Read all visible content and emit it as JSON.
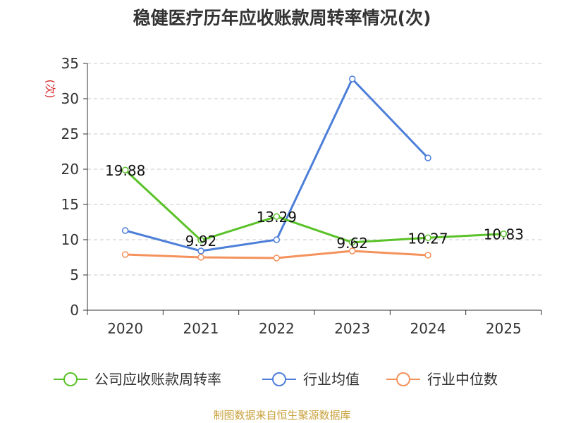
{
  "chart_data": {
    "type": "line",
    "title": "稳健医疗历年应收账款周转率情况(次)",
    "ylabel": "(次)",
    "xlabel": "",
    "categories": [
      "2020",
      "2021",
      "2022",
      "2023",
      "2024",
      "2025"
    ],
    "ylim": [
      0,
      35
    ],
    "yticks": [
      0,
      5,
      10,
      15,
      20,
      25,
      30,
      35
    ],
    "grid": true,
    "legend_position": "bottom",
    "series": [
      {
        "name": "公司应收账款周转率",
        "color": "#5ac229",
        "values": [
          19.88,
          9.92,
          13.29,
          9.62,
          10.27,
          10.83
        ],
        "labels": [
          "19.88",
          "9.92",
          "13.29",
          "9.62",
          "10.27",
          "10.83"
        ]
      },
      {
        "name": "行业均值",
        "color": "#4d7fd9",
        "values": [
          11.3,
          8.4,
          10.0,
          32.8,
          21.6,
          null
        ]
      },
      {
        "name": "行业中位数",
        "color": "#f4925c",
        "values": [
          7.9,
          7.5,
          7.4,
          8.4,
          7.8,
          null
        ]
      }
    ]
  },
  "source": "制图数据来自恒生聚源数据库"
}
